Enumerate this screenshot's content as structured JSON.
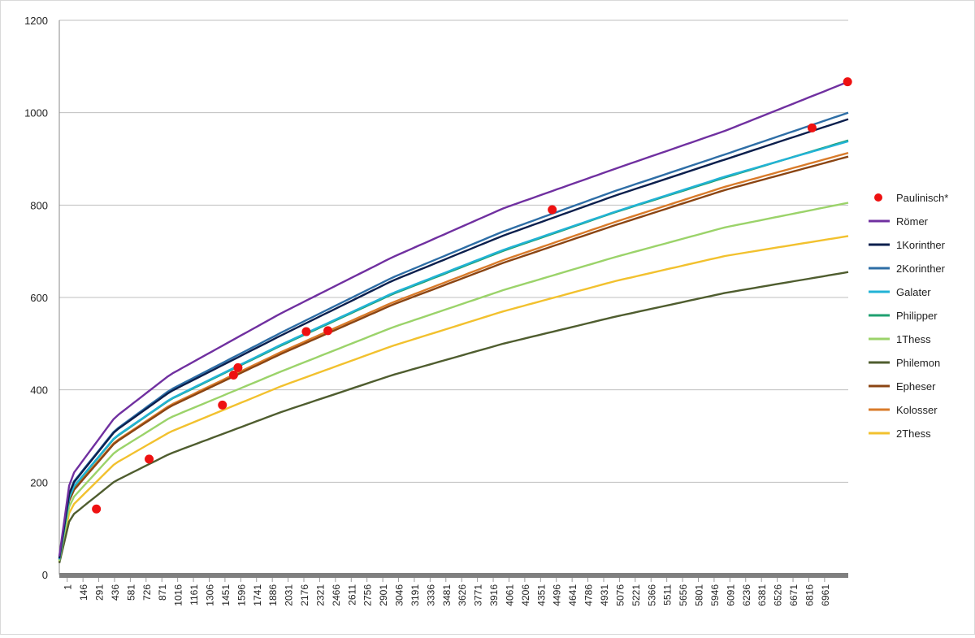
{
  "chart_data": {
    "type": "line",
    "title": "",
    "xlabel": "",
    "ylabel": "",
    "x_range": [
      1,
      7106
    ],
    "ylim": [
      0,
      1200
    ],
    "yticks": [
      0,
      200,
      400,
      600,
      800,
      1000,
      1200
    ],
    "xtick_labels": [
      "1",
      "146",
      "291",
      "436",
      "581",
      "726",
      "871",
      "1016",
      "1161",
      "1306",
      "1451",
      "1596",
      "1741",
      "1886",
      "2031",
      "2176",
      "2321",
      "2466",
      "2611",
      "2756",
      "2901",
      "3046",
      "3191",
      "3336",
      "3481",
      "3626",
      "3771",
      "3916",
      "4061",
      "4206",
      "4351",
      "4496",
      "4641",
      "4786",
      "4931",
      "5076",
      "5221",
      "5366",
      "5511",
      "5656",
      "5801",
      "5946",
      "6091",
      "6236",
      "6381",
      "6526",
      "6671",
      "6816",
      "6961"
    ],
    "grid": "horizontal",
    "legend_position": "right",
    "scatter_series": {
      "name": "Paulinisch*",
      "color": "#ee1111",
      "points": [
        {
          "x": 335,
          "y": 142
        },
        {
          "x": 810,
          "y": 250
        },
        {
          "x": 1470,
          "y": 367
        },
        {
          "x": 1570,
          "y": 432
        },
        {
          "x": 1610,
          "y": 448
        },
        {
          "x": 2225,
          "y": 526
        },
        {
          "x": 2420,
          "y": 528
        },
        {
          "x": 4440,
          "y": 790
        },
        {
          "x": 6780,
          "y": 967
        },
        {
          "x": 7100,
          "y": 1067
        }
      ]
    },
    "series": [
      {
        "name": "Römer",
        "color": "#7030a0",
        "x": [
          1,
          100,
          500,
          1000,
          2000,
          3000,
          4000,
          5000,
          6000,
          7106
        ],
        "y": [
          40,
          210,
          340,
          433,
          566,
          687,
          793,
          878,
          961,
          1067
        ]
      },
      {
        "name": "1Korinther",
        "color": "#0b1f4d",
        "x": [
          1,
          100,
          500,
          1000,
          2000,
          3000,
          4000,
          5000,
          6000,
          7106
        ],
        "y": [
          35,
          190,
          310,
          396,
          518,
          636,
          734,
          820,
          899,
          986
        ]
      },
      {
        "name": "2Korinther",
        "color": "#2e6ea6",
        "x": [
          1,
          100,
          500,
          1000,
          2000,
          3000,
          4000,
          5000,
          6000,
          7106
        ],
        "y": [
          35,
          192,
          312,
          400,
          524,
          643,
          743,
          830,
          910,
          1000
        ]
      },
      {
        "name": "Galater",
        "color": "#22b3d6",
        "x": [
          1,
          100,
          500,
          1000,
          2000,
          3000,
          4000,
          5000,
          6000,
          7106
        ],
        "y": [
          33,
          182,
          297,
          380,
          498,
          609,
          703,
          785,
          862,
          938
        ]
      },
      {
        "name": "Philipper",
        "color": "#1fa070",
        "x": [
          1,
          100,
          500,
          1000,
          2000,
          3000,
          4000,
          5000,
          6000,
          7106
        ],
        "y": [
          33,
          181,
          296,
          379,
          496,
          607,
          701,
          784,
          860,
          940
        ]
      },
      {
        "name": "1Thess",
        "color": "#9bd36a",
        "x": [
          1,
          100,
          500,
          1000,
          2000,
          3000,
          4000,
          5000,
          6000,
          7106
        ],
        "y": [
          30,
          160,
          265,
          340,
          440,
          535,
          616,
          687,
          752,
          805
        ]
      },
      {
        "name": "Philemon",
        "color": "#4f5d2f",
        "x": [
          1,
          100,
          500,
          1000,
          2000,
          3000,
          4000,
          5000,
          6000,
          7106
        ],
        "y": [
          25,
          125,
          202,
          262,
          352,
          432,
          500,
          558,
          610,
          655
        ]
      },
      {
        "name": "Epheser",
        "color": "#8b4513",
        "x": [
          1,
          100,
          500,
          1000,
          2000,
          3000,
          4000,
          5000,
          6000,
          7106
        ],
        "y": [
          32,
          174,
          285,
          364,
          478,
          584,
          675,
          756,
          833,
          905
        ]
      },
      {
        "name": "Kolosser",
        "color": "#d97b2a",
        "x": [
          1,
          100,
          500,
          1000,
          2000,
          3000,
          4000,
          5000,
          6000,
          7106
        ],
        "y": [
          32,
          176,
          287,
          367,
          482,
          589,
          681,
          763,
          840,
          913
        ]
      },
      {
        "name": "2Thess",
        "color": "#f2c12e",
        "x": [
          1,
          100,
          500,
          1000,
          2000,
          3000,
          4000,
          5000,
          6000,
          7106
        ],
        "y": [
          28,
          145,
          240,
          309,
          408,
          495,
          570,
          635,
          690,
          733
        ]
      }
    ]
  }
}
